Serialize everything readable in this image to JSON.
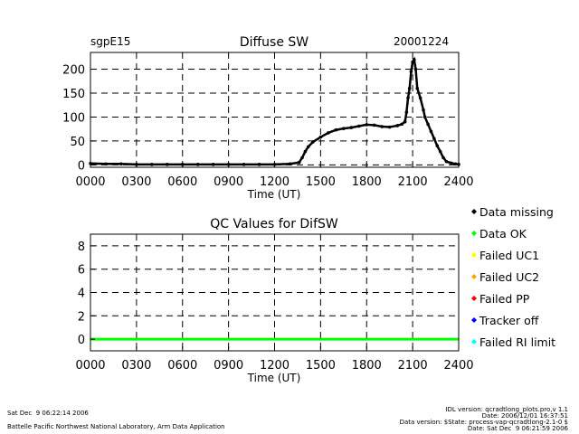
{
  "chart_data": [
    {
      "type": "scatter",
      "title": "Diffuse SW",
      "station": "sgpE15",
      "date": "20001224",
      "xlabel": "Time (UT)",
      "ylabel": "",
      "xlim": [
        0,
        24
      ],
      "ylim": [
        -5,
        235
      ],
      "xticks": [
        "0000",
        "0300",
        "0600",
        "0900",
        "1200",
        "1500",
        "1800",
        "2100",
        "2400"
      ],
      "yticks": [
        "0",
        "50",
        "100",
        "150",
        "200"
      ],
      "grid": "dashed",
      "series": [
        {
          "color": "#000000",
          "x": [
            0,
            1,
            2,
            3,
            4,
            5,
            6,
            7,
            8,
            9,
            10,
            11,
            12,
            13,
            13.6,
            13.8,
            14.0,
            14.2,
            14.5,
            15.0,
            15.5,
            16.0,
            16.5,
            17.0,
            17.5,
            18.0,
            18.5,
            19.0,
            19.5,
            20.0,
            20.3,
            20.5,
            20.6,
            20.7,
            20.8,
            20.9,
            21.0,
            21.1,
            21.2,
            21.3,
            21.5,
            21.7,
            21.8,
            22.0,
            22.2,
            22.4,
            22.6,
            22.8,
            23.0,
            23.2,
            23.5,
            23.8,
            24.0
          ],
          "y": [
            3,
            2,
            2,
            1,
            1,
            1,
            1,
            1,
            1,
            1,
            1,
            1,
            1,
            2,
            5,
            15,
            28,
            38,
            48,
            58,
            67,
            73,
            76,
            78,
            81,
            84,
            83,
            80,
            79,
            82,
            85,
            90,
            110,
            140,
            160,
            195,
            215,
            220,
            200,
            160,
            140,
            115,
            100,
            85,
            70,
            55,
            40,
            28,
            15,
            7,
            4,
            2,
            1
          ]
        }
      ]
    },
    {
      "type": "line",
      "title": "QC Values for DifSW",
      "xlabel": "Time (UT)",
      "ylabel": "",
      "xlim": [
        0,
        24
      ],
      "ylim": [
        -1,
        9
      ],
      "xticks": [
        "0000",
        "0300",
        "0600",
        "0900",
        "1200",
        "1500",
        "1800",
        "2100",
        "2400"
      ],
      "yticks": [
        "0",
        "2",
        "4",
        "6",
        "8"
      ],
      "grid": "dashed",
      "series": [
        {
          "color": "#00ff00",
          "x": [
            0,
            24
          ],
          "y": [
            0,
            0
          ]
        }
      ]
    }
  ],
  "legend": {
    "placement": "right",
    "items": [
      {
        "label": "Data missing",
        "color": "#000000"
      },
      {
        "label": "Data OK",
        "color": "#00ff00"
      },
      {
        "label": "Failed UC1",
        "color": "#ffff00"
      },
      {
        "label": "Failed UC2",
        "color": "#ffa500"
      },
      {
        "label": "Failed PP",
        "color": "#ff0000"
      },
      {
        "label": "Tracker off",
        "color": "#0000ff"
      },
      {
        "label": "Failed RI limit",
        "color": "#00ffff"
      }
    ]
  },
  "footer": {
    "left_date": "Sat Dec  9 06:22:14 2006",
    "org": "Battelle Pacific Northwest National Laboratory, Arm Data Application",
    "idl": "IDL version: qcradtlong_plots.pro,v 1.1",
    "date_line": "Date: 2006/12/01 16:37:51",
    "data_version": "Data version: $State: process-vap-qcradtlong-2.1-0 $",
    "run_date": "Date: Sat Dec  9 06:21:59 2006"
  }
}
